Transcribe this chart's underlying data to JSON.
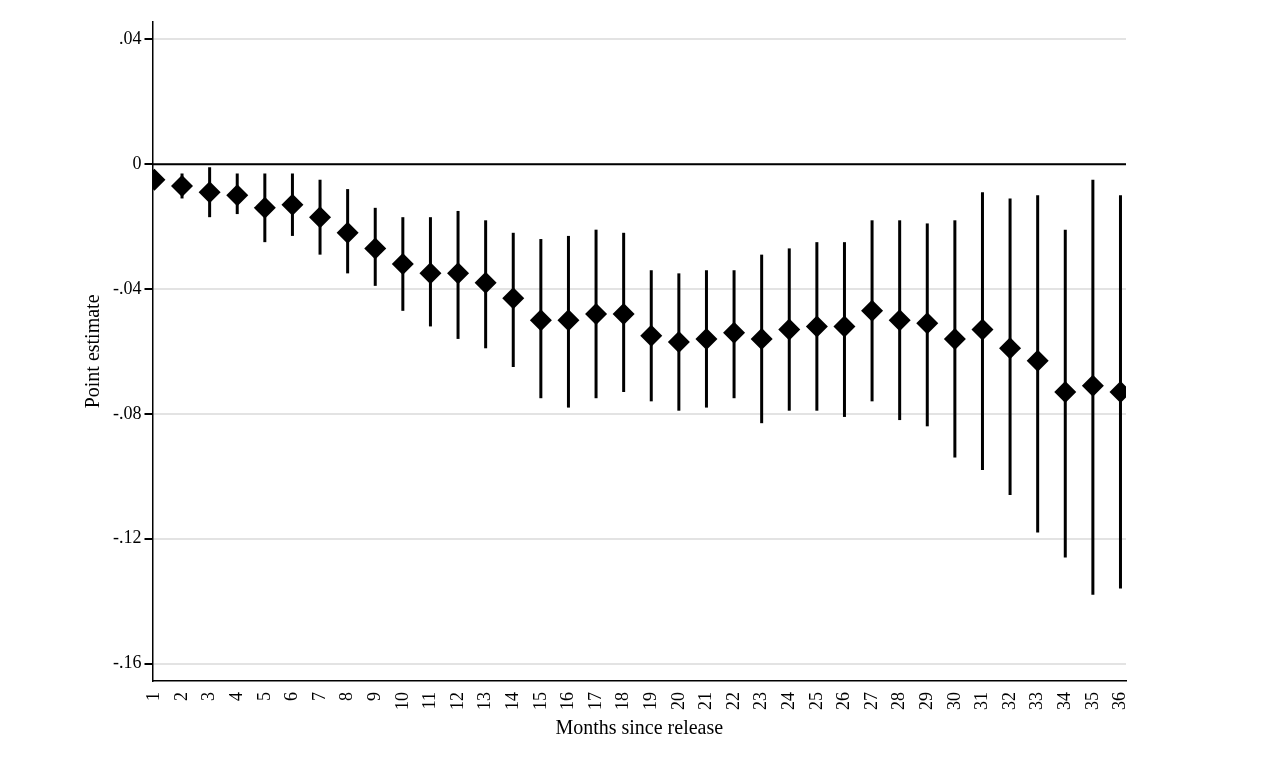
{
  "chart_data": {
    "type": "scatter",
    "xlabel": "Months since release",
    "ylabel": "Point estimate",
    "x": [
      1,
      2,
      3,
      4,
      5,
      6,
      7,
      8,
      9,
      10,
      11,
      12,
      13,
      14,
      15,
      16,
      17,
      18,
      19,
      20,
      21,
      22,
      23,
      24,
      25,
      26,
      27,
      28,
      29,
      30,
      31,
      32,
      33,
      34,
      35,
      36
    ],
    "series": [
      {
        "color": "#000000",
        "values": [
          -0.005,
          -0.007,
          -0.009,
          -0.01,
          -0.014,
          -0.013,
          -0.017,
          -0.022,
          -0.027,
          -0.032,
          -0.035,
          -0.035,
          -0.038,
          -0.043,
          -0.05,
          -0.05,
          -0.048,
          -0.048,
          -0.055,
          -0.057,
          -0.056,
          -0.054,
          -0.056,
          -0.053,
          -0.052,
          -0.052,
          -0.047,
          -0.05,
          -0.051,
          -0.056,
          -0.053,
          -0.059,
          -0.063,
          -0.073,
          -0.071,
          -0.073
        ],
        "errors": [
          null,
          [
            -0.011,
            -0.003
          ],
          [
            -0.017,
            -0.001
          ],
          [
            -0.016,
            -0.003
          ],
          [
            -0.025,
            -0.003
          ],
          [
            -0.023,
            -0.003
          ],
          [
            -0.029,
            -0.005
          ],
          [
            -0.035,
            -0.008
          ],
          [
            -0.039,
            -0.014
          ],
          [
            -0.047,
            -0.017
          ],
          [
            -0.052,
            -0.017
          ],
          [
            -0.056,
            -0.015
          ],
          [
            -0.059,
            -0.018
          ],
          [
            -0.065,
            -0.022
          ],
          [
            -0.075,
            -0.024
          ],
          [
            -0.078,
            -0.023
          ],
          [
            -0.075,
            -0.021
          ],
          [
            -0.073,
            -0.022
          ],
          [
            -0.076,
            -0.034
          ],
          [
            -0.079,
            -0.035
          ],
          [
            -0.078,
            -0.034
          ],
          [
            -0.075,
            -0.034
          ],
          [
            -0.083,
            -0.029
          ],
          [
            -0.079,
            -0.027
          ],
          [
            -0.079,
            -0.025
          ],
          [
            -0.081,
            -0.025
          ],
          [
            -0.076,
            -0.018
          ],
          [
            -0.082,
            -0.018
          ],
          [
            -0.084,
            -0.019
          ],
          [
            -0.094,
            -0.018
          ],
          [
            -0.098,
            -0.009
          ],
          [
            -0.106,
            -0.011
          ],
          [
            -0.118,
            -0.01
          ],
          [
            -0.126,
            -0.021
          ],
          [
            -0.138,
            -0.005
          ],
          [
            -0.136,
            -0.01
          ]
        ]
      }
    ],
    "marker": "diamond",
    "grid": "y",
    "legend": false,
    "xlim": [
      0.93,
      36.2
    ],
    "xticks": [
      1,
      2,
      3,
      4,
      5,
      6,
      7,
      8,
      9,
      10,
      11,
      12,
      13,
      14,
      15,
      16,
      17,
      18,
      19,
      20,
      21,
      22,
      23,
      24,
      25,
      26,
      27,
      28,
      29,
      30,
      31,
      32,
      33,
      34,
      35,
      36
    ],
    "ylim": [
      -0.1656,
      0.0456
    ],
    "yticks": [
      {
        "value": 0.04,
        "label": ".04"
      },
      0,
      {
        "value": -0.04,
        "label": "-.04"
      },
      {
        "value": -0.08,
        "label": "-.08"
      },
      {
        "value": -0.12,
        "label": "-.12"
      },
      {
        "value": -0.16,
        "label": "-.16"
      }
    ],
    "ref_lines": [
      {
        "axis": "y",
        "value": 0,
        "color": "#000000"
      }
    ]
  }
}
